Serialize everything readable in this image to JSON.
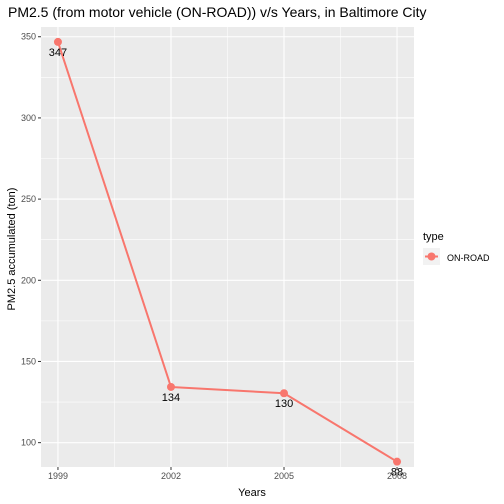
{
  "chart_data": {
    "type": "line",
    "title": "PM2.5 (from motor vehicle (ON-ROAD)) v/s Years, in Baltimore City",
    "xlabel": "Years",
    "ylabel": "PM2.5 accumulated (ton)",
    "x": [
      1999,
      2002,
      2005,
      2008
    ],
    "x_tick_labels": [
      "1999",
      "2002",
      "2005",
      "2008"
    ],
    "y_ticks": [
      100,
      150,
      200,
      250,
      300,
      350
    ],
    "y_tick_labels": [
      "100",
      "150",
      "200",
      "250",
      "300",
      "350"
    ],
    "ylim": [
      85,
      356
    ],
    "xlim": [
      1998.55,
      2008.45
    ],
    "grid": true,
    "series": [
      {
        "name": "ON-ROAD",
        "values": [
          346.82,
          134.31,
          130.43,
          88.28
        ],
        "labels": [
          "347",
          "134",
          "130",
          "88"
        ]
      }
    ],
    "legend": {
      "title": "type",
      "position": "right",
      "entries": [
        "ON-ROAD"
      ]
    },
    "colors": {
      "series": "#F8766D",
      "panel": "#EBEBEB",
      "grid": "#FFFFFF"
    }
  }
}
